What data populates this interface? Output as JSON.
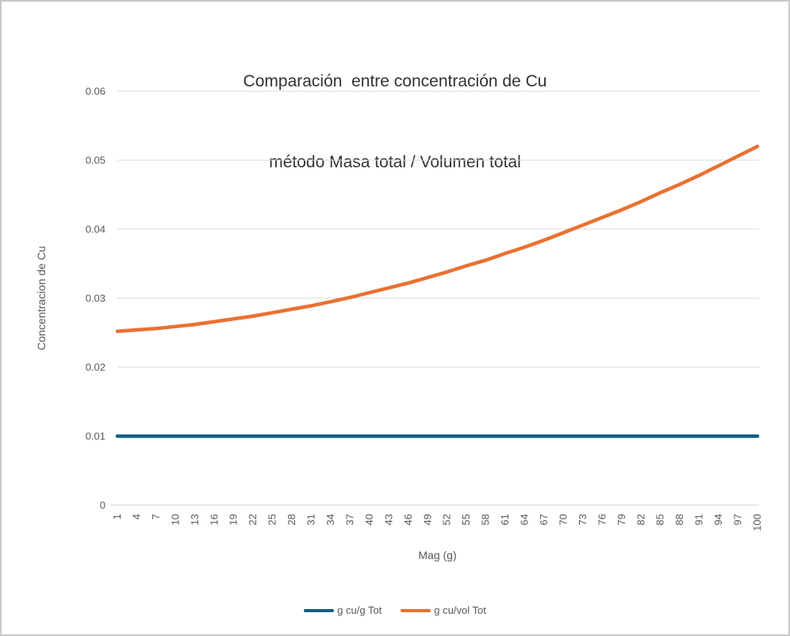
{
  "title": {
    "line1": "Comparación  entre concentración de Cu",
    "line2": "método Masa total / Volumen total"
  },
  "colors": {
    "series_mass": "#156082",
    "series_volume": "#E97132",
    "gridline": "#D9D9D9",
    "axis_line": "#D9D9D9",
    "tick_text": "#595959",
    "title_text": "#333333"
  },
  "chart_data": {
    "type": "line",
    "title": "Comparación entre concentración de Cu método Masa total / Volumen total",
    "xlabel": "Mag (g)",
    "ylabel": "Concentracion de Cu",
    "xlim": [
      1,
      100
    ],
    "ylim": [
      0,
      0.06
    ],
    "grid": true,
    "legend_position": "bottom",
    "x": [
      1,
      4,
      7,
      10,
      13,
      16,
      19,
      22,
      25,
      28,
      31,
      34,
      37,
      40,
      43,
      46,
      49,
      52,
      55,
      58,
      61,
      64,
      67,
      70,
      73,
      76,
      79,
      82,
      85,
      88,
      91,
      94,
      97,
      100
    ],
    "y_ticks": [
      0,
      0.01,
      0.02,
      0.03,
      0.04,
      0.05,
      0.06
    ],
    "y_tick_labels": [
      "0",
      "0.01",
      "0.02",
      "0.03",
      "0.04",
      "0.05",
      "0.06"
    ],
    "series": [
      {
        "name": "g cu/g Tot",
        "color": "#156082",
        "values": [
          0.01,
          0.01,
          0.01,
          0.01,
          0.01,
          0.01,
          0.01,
          0.01,
          0.01,
          0.01,
          0.01,
          0.01,
          0.01,
          0.01,
          0.01,
          0.01,
          0.01,
          0.01,
          0.01,
          0.01,
          0.01,
          0.01,
          0.01,
          0.01,
          0.01,
          0.01,
          0.01,
          0.01,
          0.01,
          0.01,
          0.01,
          0.01,
          0.01,
          0.01
        ]
      },
      {
        "name": "g cu/vol Tot",
        "color": "#E97132",
        "values": [
          0.0252,
          0.0254,
          0.0256,
          0.0259,
          0.0262,
          0.0266,
          0.027,
          0.0274,
          0.0279,
          0.0284,
          0.0289,
          0.0295,
          0.0301,
          0.0308,
          0.0315,
          0.0322,
          0.033,
          0.0338,
          0.0347,
          0.0355,
          0.0365,
          0.0374,
          0.0384,
          0.0395,
          0.0406,
          0.0417,
          0.0428,
          0.044,
          0.0453,
          0.0465,
          0.0478,
          0.0492,
          0.0506,
          0.052
        ]
      }
    ]
  },
  "legend": {
    "item1": "g cu/g Tot",
    "item2": "g cu/vol Tot"
  }
}
